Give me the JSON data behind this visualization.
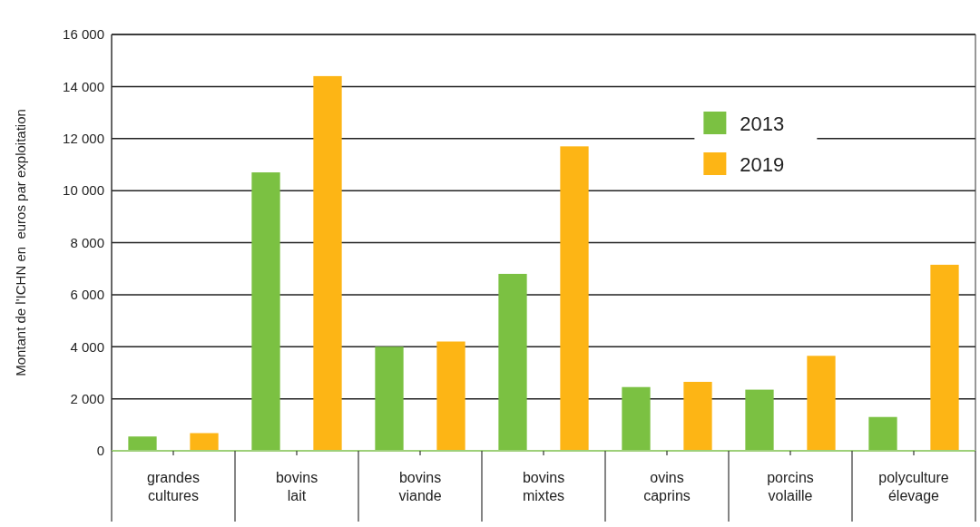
{
  "chart_data": {
    "type": "bar",
    "ylabel": "Montant de l'ICHN en  euros par exploitation",
    "categories": [
      "grandes cultures",
      "bovins lait",
      "bovins viande",
      "bovins mixtes",
      "ovins caprins",
      "porcins volaille",
      "polyculture élevage"
    ],
    "series": [
      {
        "name": "2013",
        "color": "#7bc142",
        "values": [
          550,
          10700,
          4000,
          6800,
          2450,
          2350,
          1300
        ]
      },
      {
        "name": "2019",
        "color": "#fdb515",
        "values": [
          680,
          14400,
          4200,
          11700,
          2650,
          3650,
          7150
        ]
      }
    ],
    "ylim": [
      0,
      16000
    ],
    "yticks": [
      0,
      {
        "value": 2000,
        "label": "2 000"
      },
      {
        "value": 4000,
        "label": "4 000"
      },
      {
        "value": 6000,
        "label": "6 000"
      },
      {
        "value": 8000,
        "label": "8 000"
      },
      {
        "value": 10000,
        "label": "10 000"
      },
      {
        "value": 12000,
        "label": "12 000"
      },
      {
        "value": 14000,
        "label": "14 000"
      },
      {
        "value": 16000,
        "label": "16 000"
      }
    ],
    "grid": "y",
    "legend": "top right"
  }
}
